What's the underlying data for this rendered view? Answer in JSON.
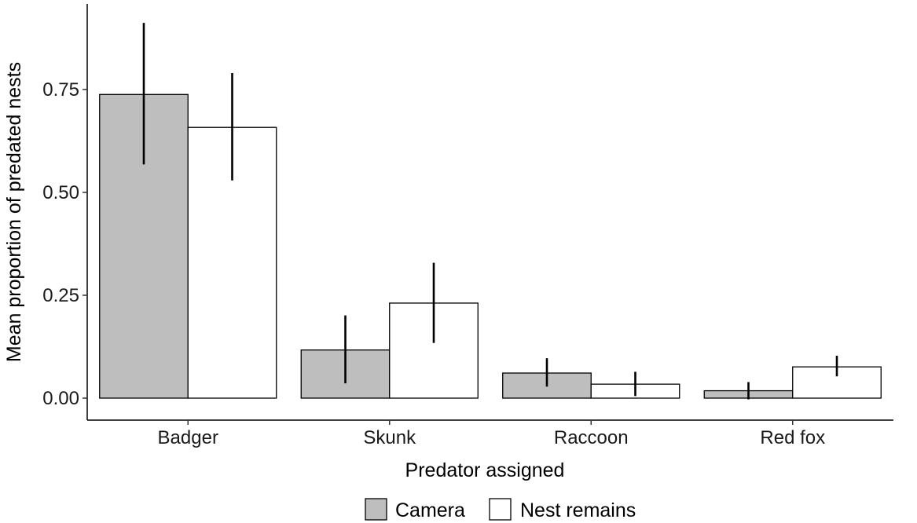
{
  "chart_data": {
    "type": "bar",
    "title": "",
    "xlabel": "Predator assigned",
    "ylabel": "Mean proportion of predated nests",
    "categories": [
      "Badger",
      "Skunk",
      "Raccoon",
      "Red fox"
    ],
    "yticks": [
      0,
      0.25,
      0.5,
      0.75
    ],
    "ytick_labels": [
      "0.00",
      "0.25",
      "0.50",
      "0.75"
    ],
    "ylim": [
      -0.05,
      0.96
    ],
    "grid": false,
    "legend_position": "bottom",
    "series": [
      {
        "name": "Camera",
        "color": "#bebebe",
        "values": [
          0.738,
          0.117,
          0.061,
          0.018
        ],
        "error_low": [
          0.568,
          0.036,
          0.028,
          -0.003
        ],
        "error_high": [
          0.912,
          0.201,
          0.097,
          0.039
        ]
      },
      {
        "name": "Nest remains",
        "color": "#ffffff",
        "values": [
          0.658,
          0.231,
          0.034,
          0.076
        ],
        "error_low": [
          0.529,
          0.134,
          0.005,
          0.053
        ],
        "error_high": [
          0.79,
          0.329,
          0.064,
          0.103
        ]
      }
    ]
  }
}
